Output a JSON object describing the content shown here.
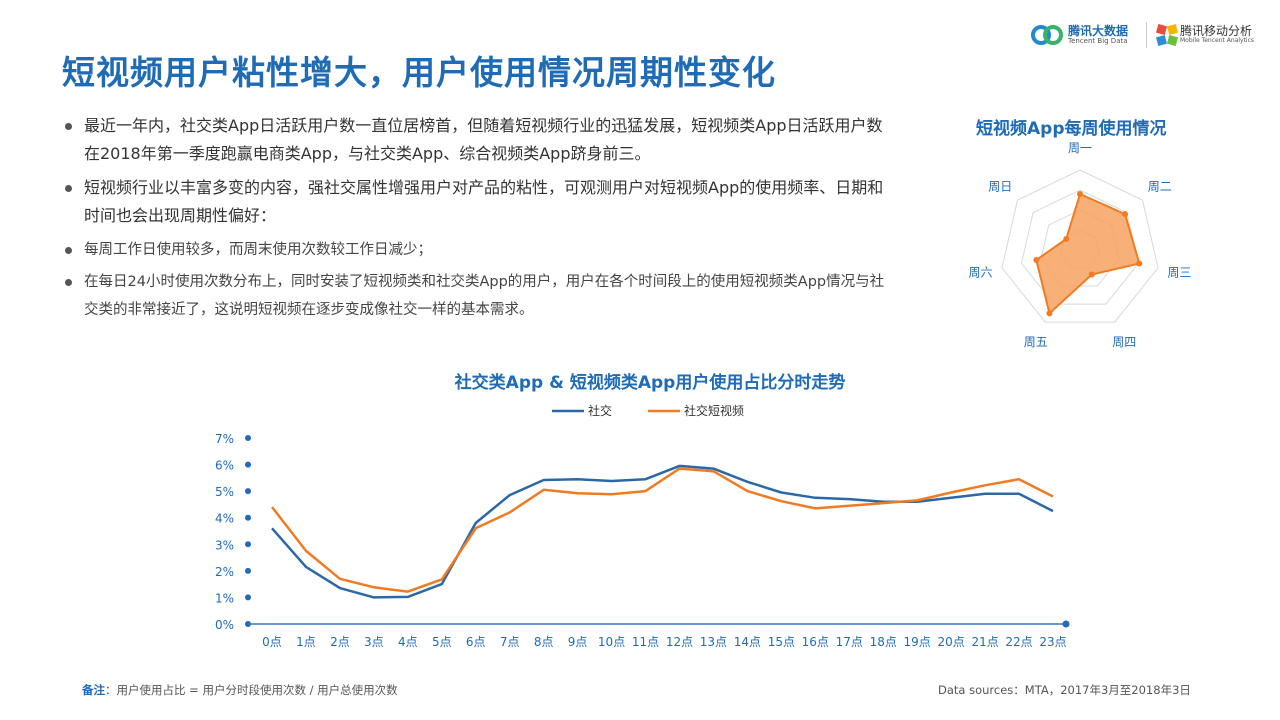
{
  "header": {
    "title": "短视频用户粘性增大，用户使用情况周期性变化",
    "logo_tencent_big_data": "腾讯大数据",
    "logo_tencent_big_data_en": "Tencent Big Data",
    "logo_mta": "腾讯移动分析",
    "logo_mta_en": "Mobile Tencent Analytics"
  },
  "bullets": {
    "main1": "最近一年内，社交类App日活跃用户数一直位居榜首，但随着短视频行业的迅猛发展，短视频类App日活跃用户数在2018年第一季度跑赢电商类App，与社交类App、综合视频类App跻身前三。",
    "main2": "短视频行业以丰富多变的内容，强社交属性增强用户对产品的粘性，可观测用户对短视频App的使用频率、日期和时间也会出现周期性偏好：",
    "sub1": "每周工作日使用较多，而周末使用次数较工作日减少；",
    "sub2": "在每日24小时使用次数分布上，同时安装了短视频类和社交类App的用户，用户在各个时间段上的使用短视频类App情况与社交类的非常接近了，这说明短视频在逐步变成像社交一样的基本需求。"
  },
  "footer": {
    "note_label": "备注",
    "note_text": "：用户使用占比 = 用户分时段使用次数 / 用户总使用次数",
    "source": "Data sources：MTA，2017年3月至2018年3日"
  },
  "colors": {
    "title_blue": "#1f6bb5",
    "social_blue": "#2c68a8",
    "video_orange": "#f07b22",
    "radar_fill": "#f5a260"
  },
  "chart_data": [
    {
      "type": "radar",
      "title": "短视频App每周使用情况",
      "categories": [
        "周一",
        "周二",
        "周三",
        "周四",
        "周五",
        "周六",
        "周日"
      ],
      "values": [
        0.7,
        0.72,
        0.76,
        0.34,
        0.88,
        0.56,
        0.22
      ],
      "rings": 4,
      "max": 1.0
    },
    {
      "type": "line",
      "title": "社交类App & 短视频类App用户使用占比分时走势",
      "categories": [
        "0点",
        "1点",
        "2点",
        "3点",
        "4点",
        "5点",
        "6点",
        "7点",
        "8点",
        "9点",
        "10点",
        "11点",
        "12点",
        "13点",
        "14点",
        "15点",
        "16点",
        "17点",
        "18点",
        "19点",
        "20点",
        "21点",
        "22点",
        "23点"
      ],
      "series": [
        {
          "name": "社交",
          "color": "#2c68a8",
          "values": [
            3.6,
            2.15,
            1.35,
            1.0,
            1.02,
            1.5,
            3.8,
            4.85,
            5.42,
            5.45,
            5.38,
            5.45,
            5.95,
            5.85,
            5.35,
            4.95,
            4.75,
            4.7,
            4.6,
            4.6,
            4.75,
            4.9,
            4.9,
            4.25
          ]
        },
        {
          "name": "社交短视频",
          "color": "#f07b22",
          "values": [
            4.4,
            2.75,
            1.7,
            1.38,
            1.22,
            1.68,
            3.6,
            4.2,
            5.05,
            4.92,
            4.88,
            5.0,
            5.85,
            5.75,
            5.0,
            4.62,
            4.35,
            4.45,
            4.55,
            4.65,
            4.95,
            5.22,
            5.45,
            4.8
          ]
        }
      ],
      "yticks": [
        "0%",
        "1%",
        "2%",
        "3%",
        "4%",
        "5%",
        "6%",
        "7%"
      ],
      "ylim": [
        0,
        7
      ],
      "legend": "top-center"
    }
  ]
}
